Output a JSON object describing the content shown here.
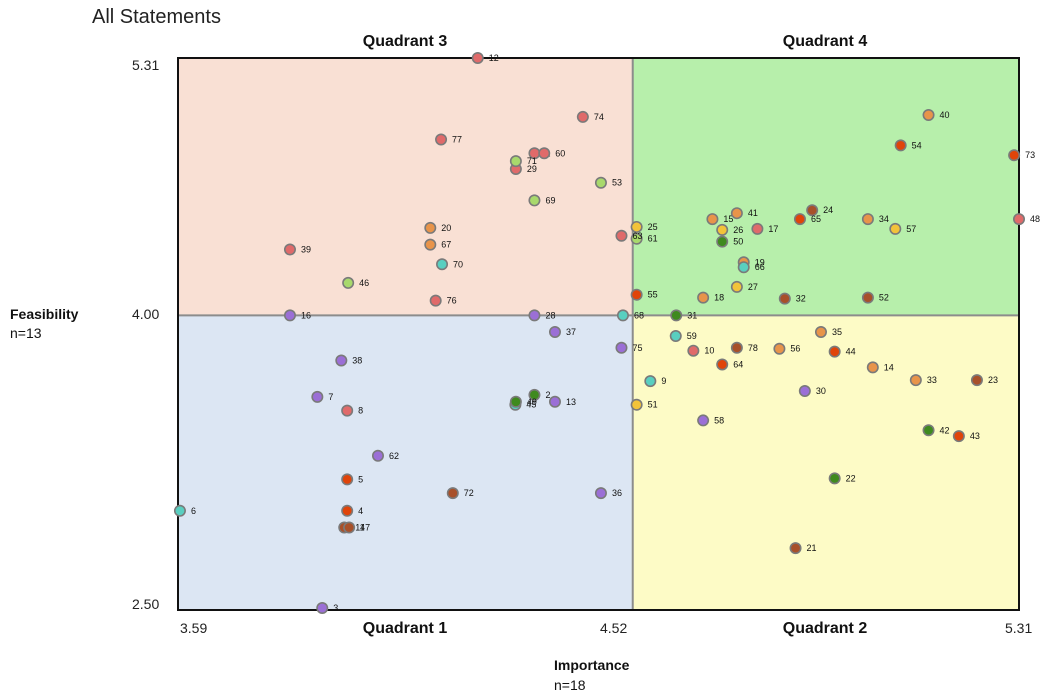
{
  "page": {
    "title": "All Statements"
  },
  "chart_data": {
    "type": "scatter",
    "title": "All Statements",
    "xlabel": "Importance",
    "xlabel_n": "n=18",
    "ylabel": "Feasibility",
    "ylabel_n": "n=13",
    "xlim": [
      3.59,
      5.31
    ],
    "ylim": [
      2.5,
      5.31
    ],
    "x_divider": 4.52,
    "y_divider": 4.0,
    "x_tick_labels": [
      "3.59",
      "4.52",
      "5.31"
    ],
    "y_tick_labels": [
      "5.31",
      "4.00",
      "2.50"
    ],
    "quadrants": {
      "q1": "Quadrant 1",
      "q2": "Quadrant 2",
      "q3": "Quadrant 3",
      "q4": "Quadrant 4"
    },
    "quadrant_colors": {
      "q1": "#dce6f3",
      "q2": "#fdfbc6",
      "q3": "#f9e0d4",
      "q4": "#b7efab"
    },
    "points": [
      {
        "id": "1",
        "x": 4.319,
        "y": 4.825,
        "color": "#e06a6a"
      },
      {
        "id": "2",
        "x": 4.319,
        "y": 3.595,
        "color": "#3f8a1e"
      },
      {
        "id": "3",
        "x": 3.885,
        "y": 2.51,
        "color": "#9b6fd6"
      },
      {
        "id": "4",
        "x": 3.936,
        "y": 3.005,
        "color": "#e0440a"
      },
      {
        "id": "5",
        "x": 3.936,
        "y": 3.165,
        "color": "#e0440a"
      },
      {
        "id": "6",
        "x": 3.594,
        "y": 3.005,
        "color": "#59cfc0"
      },
      {
        "id": "7",
        "x": 3.875,
        "y": 3.585,
        "color": "#9b6fd6"
      },
      {
        "id": "8",
        "x": 3.936,
        "y": 3.515,
        "color": "#e06a6a"
      },
      {
        "id": "9",
        "x": 4.556,
        "y": 3.665,
        "color": "#59cfc0"
      },
      {
        "id": "10",
        "x": 4.644,
        "y": 3.82,
        "color": "#e06a6a"
      },
      {
        "id": "11",
        "x": 3.93,
        "y": 2.92,
        "color": "#a8502a"
      },
      {
        "id": "12",
        "x": 4.203,
        "y": 5.31,
        "color": "#e06a6a"
      },
      {
        "id": "13",
        "x": 4.361,
        "y": 3.56,
        "color": "#9b6fd6"
      },
      {
        "id": "14",
        "x": 5.011,
        "y": 3.735,
        "color": "#e8944a"
      },
      {
        "id": "15",
        "x": 4.683,
        "y": 4.49,
        "color": "#e8944a"
      },
      {
        "id": "16",
        "x": 3.819,
        "y": 4.0,
        "color": "#9b6fd6"
      },
      {
        "id": "17",
        "x": 4.775,
        "y": 4.44,
        "color": "#e06a6a"
      },
      {
        "id": "18",
        "x": 4.664,
        "y": 4.09,
        "color": "#e8944a"
      },
      {
        "id": "19",
        "x": 4.747,
        "y": 4.27,
        "color": "#e8944a"
      },
      {
        "id": "20",
        "x": 4.106,
        "y": 4.445,
        "color": "#e8944a"
      },
      {
        "id": "21",
        "x": 4.853,
        "y": 2.815,
        "color": "#a8502a"
      },
      {
        "id": "22",
        "x": 4.933,
        "y": 3.17,
        "color": "#3f8a1e"
      },
      {
        "id": "23",
        "x": 5.224,
        "y": 3.67,
        "color": "#a8502a"
      },
      {
        "id": "24",
        "x": 4.887,
        "y": 4.535,
        "color": "#a8502a"
      },
      {
        "id": "25",
        "x": 4.528,
        "y": 4.45,
        "color": "#f2c33a"
      },
      {
        "id": "26",
        "x": 4.703,
        "y": 4.435,
        "color": "#f2c33a"
      },
      {
        "id": "27",
        "x": 4.733,
        "y": 4.145,
        "color": "#f2c33a"
      },
      {
        "id": "28",
        "x": 4.319,
        "y": 4.0,
        "color": "#9b6fd6"
      },
      {
        "id": "29",
        "x": 4.281,
        "y": 4.745,
        "color": "#e06a6a"
      },
      {
        "id": "30",
        "x": 4.872,
        "y": 3.615,
        "color": "#9b6fd6"
      },
      {
        "id": "31",
        "x": 4.609,
        "y": 4.0,
        "color": "#3f8a1e"
      },
      {
        "id": "32",
        "x": 4.831,
        "y": 4.085,
        "color": "#a8502a"
      },
      {
        "id": "33",
        "x": 5.099,
        "y": 3.67,
        "color": "#e8944a"
      },
      {
        "id": "34",
        "x": 5.001,
        "y": 4.49,
        "color": "#e8944a"
      },
      {
        "id": "35",
        "x": 4.905,
        "y": 3.915,
        "color": "#e8944a"
      },
      {
        "id": "36",
        "x": 4.455,
        "y": 3.095,
        "color": "#9b6fd6"
      },
      {
        "id": "37",
        "x": 4.361,
        "y": 3.915,
        "color": "#9b6fd6"
      },
      {
        "id": "38",
        "x": 3.924,
        "y": 3.77,
        "color": "#9b6fd6"
      },
      {
        "id": "39",
        "x": 3.819,
        "y": 4.335,
        "color": "#e06a6a"
      },
      {
        "id": "40",
        "x": 5.125,
        "y": 5.02,
        "color": "#e8944a"
      },
      {
        "id": "41",
        "x": 4.733,
        "y": 4.52,
        "color": "#e8944a"
      },
      {
        "id": "42",
        "x": 5.125,
        "y": 3.415,
        "color": "#3f8a1e"
      },
      {
        "id": "43",
        "x": 5.187,
        "y": 3.385,
        "color": "#e0440a"
      },
      {
        "id": "44",
        "x": 4.933,
        "y": 3.815,
        "color": "#e0440a"
      },
      {
        "id": "45",
        "x": 4.28,
        "y": 3.545,
        "color": "#59cfc0"
      },
      {
        "id": "46",
        "x": 3.938,
        "y": 4.165,
        "color": "#a8d96c"
      },
      {
        "id": "47",
        "x": 3.94,
        "y": 2.92,
        "color": "#a8502a"
      },
      {
        "id": "48",
        "x": 5.31,
        "y": 4.49,
        "color": "#e06a6a"
      },
      {
        "id": "49",
        "x": 4.281,
        "y": 3.56,
        "color": "#3f8a1e"
      },
      {
        "id": "50",
        "x": 4.703,
        "y": 4.375,
        "color": "#3f8a1e"
      },
      {
        "id": "51",
        "x": 4.528,
        "y": 3.545,
        "color": "#f2c33a"
      },
      {
        "id": "52",
        "x": 5.001,
        "y": 4.09,
        "color": "#a8502a"
      },
      {
        "id": "53",
        "x": 4.455,
        "y": 4.675,
        "color": "#a8d96c"
      },
      {
        "id": "54",
        "x": 5.068,
        "y": 4.865,
        "color": "#e0440a"
      },
      {
        "id": "55",
        "x": 4.528,
        "y": 4.105,
        "color": "#e0440a"
      },
      {
        "id": "56",
        "x": 4.82,
        "y": 3.83,
        "color": "#e8944a"
      },
      {
        "id": "57",
        "x": 5.057,
        "y": 4.44,
        "color": "#f2c33a"
      },
      {
        "id": "58",
        "x": 4.664,
        "y": 3.465,
        "color": "#9b6fd6"
      },
      {
        "id": "59",
        "x": 4.608,
        "y": 3.895,
        "color": "#59cfc0"
      },
      {
        "id": "60",
        "x": 4.339,
        "y": 4.825,
        "color": "#e06a6a"
      },
      {
        "id": "61",
        "x": 4.528,
        "y": 4.39,
        "color": "#a8d96c"
      },
      {
        "id": "62",
        "x": 3.999,
        "y": 3.285,
        "color": "#9b6fd6"
      },
      {
        "id": "63",
        "x": 4.497,
        "y": 4.405,
        "color": "#e06a6a"
      },
      {
        "id": "64",
        "x": 4.703,
        "y": 3.75,
        "color": "#e0440a"
      },
      {
        "id": "65",
        "x": 4.862,
        "y": 4.49,
        "color": "#e0440a"
      },
      {
        "id": "66",
        "x": 4.747,
        "y": 4.245,
        "color": "#59cfc0"
      },
      {
        "id": "67",
        "x": 4.106,
        "y": 4.36,
        "color": "#e8944a"
      },
      {
        "id": "68",
        "x": 4.5,
        "y": 4.0,
        "color": "#59cfc0"
      },
      {
        "id": "69",
        "x": 4.319,
        "y": 4.585,
        "color": "#a8d96c"
      },
      {
        "id": "70",
        "x": 4.13,
        "y": 4.26,
        "color": "#59cfc0"
      },
      {
        "id": "71",
        "x": 4.281,
        "y": 4.785,
        "color": "#a8d96c"
      },
      {
        "id": "72",
        "x": 4.152,
        "y": 3.095,
        "color": "#a8502a"
      },
      {
        "id": "73",
        "x": 5.3,
        "y": 4.815,
        "color": "#e0440a"
      },
      {
        "id": "74",
        "x": 4.418,
        "y": 5.01,
        "color": "#e06a6a"
      },
      {
        "id": "75",
        "x": 4.497,
        "y": 3.835,
        "color": "#9b6fd6"
      },
      {
        "id": "76",
        "x": 4.117,
        "y": 4.075,
        "color": "#e06a6a"
      },
      {
        "id": "77",
        "x": 4.128,
        "y": 4.895,
        "color": "#e06a6a"
      },
      {
        "id": "78",
        "x": 4.733,
        "y": 3.835,
        "color": "#a8502a"
      }
    ]
  }
}
